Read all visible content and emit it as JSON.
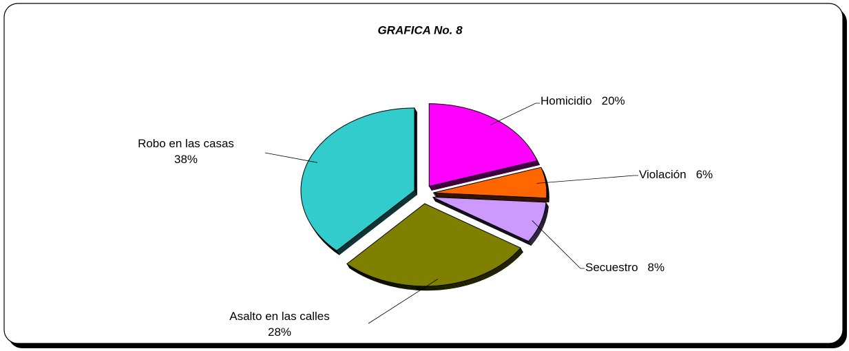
{
  "chart_data": {
    "type": "pie",
    "title": "GRAFICA No. 8",
    "categories": [
      "Homicidio",
      "Violación",
      "Secuestro",
      "Asalto en las calles",
      "Robo en las casas"
    ],
    "values": [
      20,
      6,
      8,
      28,
      38
    ],
    "value_labels": [
      "20%",
      "6%",
      "8%",
      "28%",
      "38%"
    ],
    "colors": [
      "#ff00ff",
      "#ff6600",
      "#cc99ff",
      "#808000",
      "#33cccc"
    ]
  }
}
